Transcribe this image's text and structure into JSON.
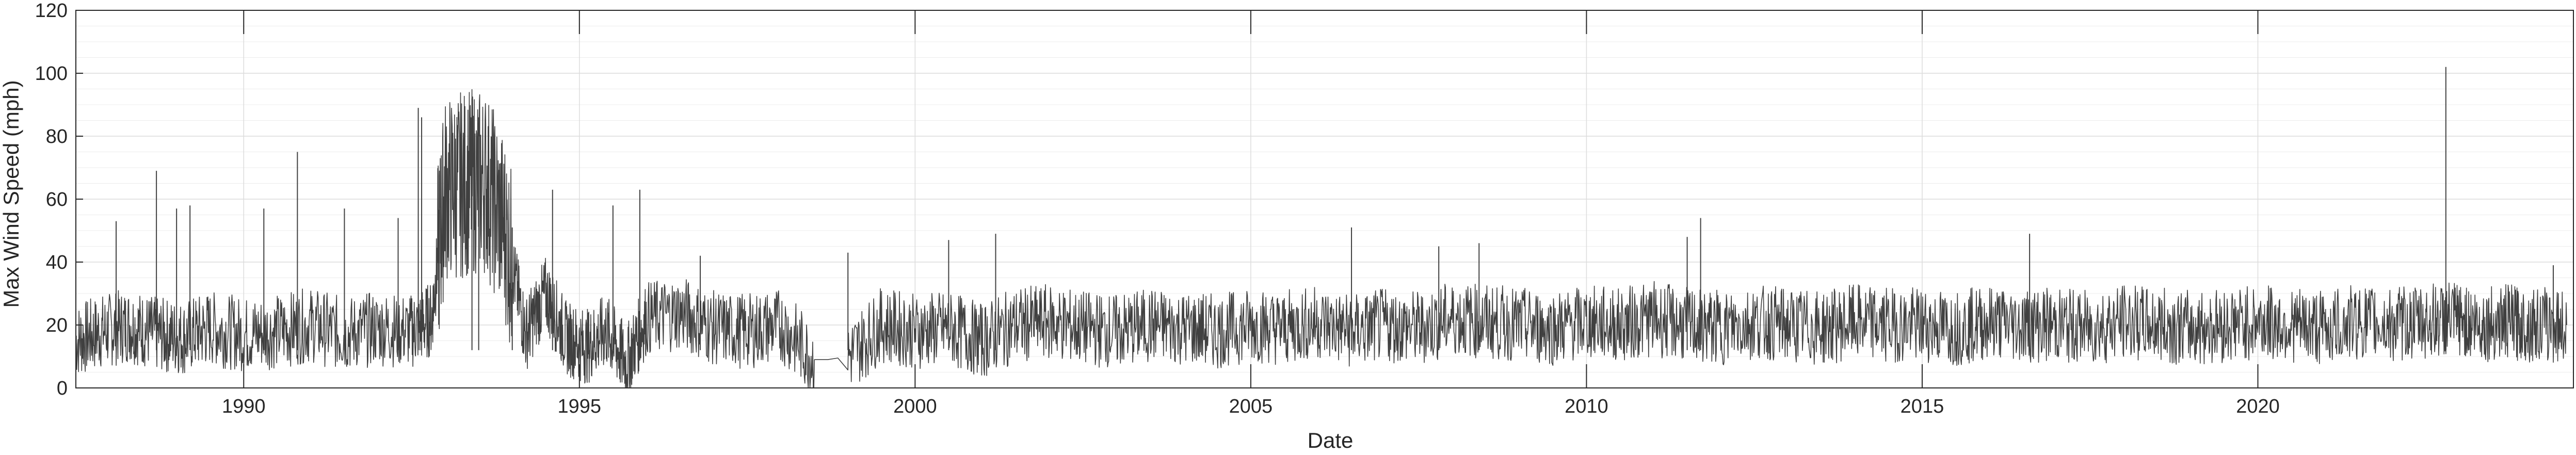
{
  "chart_data": {
    "type": "line",
    "title": "",
    "xlabel": "Date",
    "ylabel": "Max Wind Speed (mph)",
    "xlim": [
      1987.5,
      2024.7
    ],
    "ylim": [
      0,
      120
    ],
    "x_ticks": [
      1990,
      1995,
      2000,
      2005,
      2010,
      2015,
      2020
    ],
    "x_tick_labels": [
      "1990",
      "1995",
      "2000",
      "2005",
      "2010",
      "2015",
      "2020"
    ],
    "y_ticks": [
      0,
      20,
      40,
      60,
      80,
      100,
      120
    ],
    "y_tick_labels": [
      "0",
      "20",
      "40",
      "60",
      "80",
      "100",
      "120"
    ],
    "grid": true,
    "minor_grid": true,
    "legend": "none",
    "line_color": "#404040",
    "series": [
      {
        "values_description_note": "",
        "x": [
          1987.5,
          1987.9,
          1988.3,
          1988.7,
          1989.1,
          1989.5,
          1990.0,
          1990.5,
          1991.0,
          1991.5,
          1992.0,
          1992.5,
          1992.8,
          1993.0,
          1993.3,
          1993.6,
          1993.9,
          1994.2,
          1994.5,
          1994.8,
          1995.1,
          1995.4,
          1995.7,
          1996.0,
          1996.5,
          1997.0,
          1997.5,
          1998.0,
          1998.5,
          1998.7,
          1999.0,
          1999.5,
          2000.0,
          2000.5,
          2001.0,
          2001.5,
          2002.0,
          2002.5,
          2003.0,
          2003.5,
          2004.0,
          2004.5,
          2005.0,
          2005.5,
          2006.0,
          2006.5,
          2007.0,
          2007.5,
          2008.0,
          2008.5,
          2009.0,
          2009.5,
          2010.0,
          2010.5,
          2011.0,
          2011.5,
          2012.0,
          2012.5,
          2013.0,
          2013.5,
          2014.0,
          2014.5,
          2015.0,
          2015.5,
          2016.0,
          2016.5,
          2017.0,
          2017.5,
          2018.0,
          2018.5,
          2019.0,
          2019.5,
          2020.0,
          2020.5,
          2021.0,
          2021.5,
          2022.0,
          2022.5,
          2022.9,
          2023.3,
          2023.7,
          2024.1,
          2024.6
        ],
        "y": [
          15,
          18,
          20,
          17,
          16,
          19,
          17,
          18,
          20,
          17,
          19,
          18,
          22,
          63,
          65,
          66,
          50,
          17,
          30,
          16,
          13,
          18,
          8,
          22,
          24,
          19,
          18,
          20,
          9,
          9,
          10,
          20,
          18,
          19,
          15,
          20,
          21,
          19,
          18,
          20,
          19,
          18,
          20,
          19,
          21,
          18,
          20,
          19,
          22,
          21,
          20,
          19,
          21,
          20,
          22,
          20,
          19,
          21,
          20,
          19,
          21,
          20,
          20,
          19,
          21,
          20,
          20,
          19,
          21,
          20,
          19,
          20,
          21,
          20,
          19,
          21,
          20,
          21,
          22,
          20,
          21,
          20,
          20
        ],
        "spikes": [
          {
            "x": 1988.1,
            "y": 53
          },
          {
            "x": 1988.7,
            "y": 69
          },
          {
            "x": 1989.0,
            "y": 57
          },
          {
            "x": 1989.2,
            "y": 58
          },
          {
            "x": 1990.3,
            "y": 57
          },
          {
            "x": 1990.8,
            "y": 75
          },
          {
            "x": 1991.5,
            "y": 57
          },
          {
            "x": 1992.3,
            "y": 54
          },
          {
            "x": 1992.6,
            "y": 89
          },
          {
            "x": 1992.65,
            "y": 86
          },
          {
            "x": 1993.4,
            "y": 92
          },
          {
            "x": 1993.5,
            "y": 86
          },
          {
            "x": 1994.0,
            "y": 51
          },
          {
            "x": 1994.6,
            "y": 63
          },
          {
            "x": 1995.5,
            "y": 58
          },
          {
            "x": 1995.9,
            "y": 63
          },
          {
            "x": 1996.8,
            "y": 42
          },
          {
            "x": 1999.0,
            "y": 43
          },
          {
            "x": 2000.5,
            "y": 47
          },
          {
            "x": 2001.2,
            "y": 49
          },
          {
            "x": 2006.5,
            "y": 51
          },
          {
            "x": 2007.8,
            "y": 45
          },
          {
            "x": 2008.4,
            "y": 46
          },
          {
            "x": 2011.5,
            "y": 48
          },
          {
            "x": 2011.7,
            "y": 54
          },
          {
            "x": 2016.6,
            "y": 49
          },
          {
            "x": 2022.8,
            "y": 102
          },
          {
            "x": 2024.4,
            "y": 39
          }
        ]
      }
    ]
  }
}
